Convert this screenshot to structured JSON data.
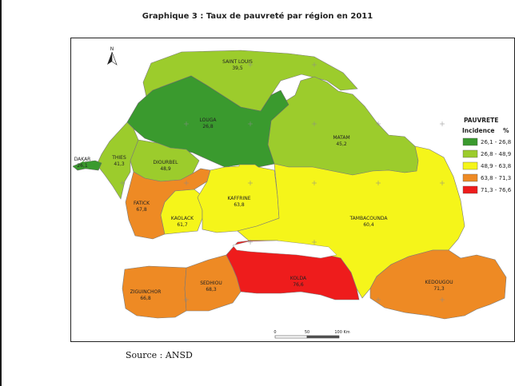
{
  "title": "Graphique 3 : Taux de pauvreté par région en 2011",
  "source": "Source : ANSD",
  "north_label": "N",
  "legend": {
    "title": "PAUVRETE",
    "subtitle": "Incidence",
    "unit": "%",
    "classes": [
      {
        "label": "26,1 - 26,8",
        "color": "#3a9a2e"
      },
      {
        "label": "26,8 - 48,9",
        "color": "#9ccc2c"
      },
      {
        "label": "48,9 - 63,8",
        "color": "#f5f51a"
      },
      {
        "label": "63,8 - 71,3",
        "color": "#ee8a24"
      },
      {
        "label": "71,3 - 76,6",
        "color": "#ee1c1c"
      }
    ]
  },
  "scale_bar": {
    "labels": [
      "0",
      "50",
      "100 Km"
    ]
  },
  "regions": [
    {
      "name": "SAINT LOUIS",
      "value": "39,5"
    },
    {
      "name": "LOUGA",
      "value": "26,8"
    },
    {
      "name": "MATAM",
      "value": "45,2"
    },
    {
      "name": "DAKAR",
      "value": "26,1"
    },
    {
      "name": "THIES",
      "value": "41,3"
    },
    {
      "name": "DIOURBEL",
      "value": "48,9"
    },
    {
      "name": "FATICK",
      "value": "67,8"
    },
    {
      "name": "KAOLACK",
      "value": "61,7"
    },
    {
      "name": "KAFFRINE",
      "value": "63,8"
    },
    {
      "name": "TAMBACOUNDA",
      "value": "60,4"
    },
    {
      "name": "ZIGUINCHOR",
      "value": "66,8"
    },
    {
      "name": "SEDHIOU",
      "value": "68,3"
    },
    {
      "name": "KOLDA",
      "value": "76,6"
    },
    {
      "name": "KEDOUGOU",
      "value": "71,3"
    }
  ]
}
